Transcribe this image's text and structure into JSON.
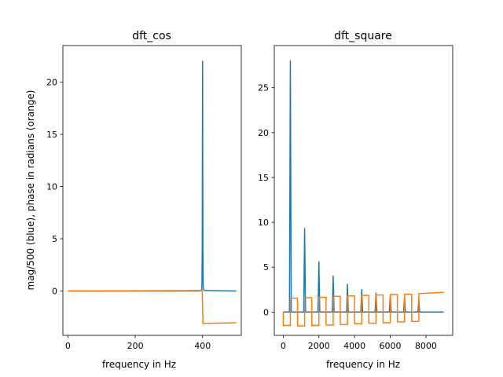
{
  "chart_data": [
    {
      "type": "line",
      "title": "dft_cos",
      "xlabel": "frequency in Hz",
      "ylabel": "mag/500 (blue), phase in radians (orange)",
      "xlim": [
        -15,
        515
      ],
      "ylim": [
        -4.25,
        23.5
      ],
      "xticks": [
        0,
        200,
        400
      ],
      "yticks": [
        0,
        5,
        10,
        15,
        20
      ],
      "grid": false,
      "series": [
        {
          "color": "#1f77b4",
          "points": [
            [
              0,
              0
            ],
            [
              390,
              0
            ],
            [
              396,
              0.05
            ],
            [
              398,
              0.3
            ],
            [
              399,
              4
            ],
            [
              400,
              22
            ],
            [
              401,
              4
            ],
            [
              402,
              0.3
            ],
            [
              404,
              0.05
            ],
            [
              500,
              0
            ]
          ]
        },
        {
          "color": "#ff7f0e",
          "points": [
            [
              0,
              0
            ],
            [
              398,
              0.05
            ],
            [
              399,
              0.1
            ],
            [
              401,
              -3.1
            ],
            [
              500,
              -3.05
            ]
          ]
        }
      ]
    },
    {
      "type": "line",
      "title": "dft_square",
      "xlabel": "frequency in Hz",
      "ylabel": "",
      "xlim": [
        -500,
        9500
      ],
      "ylim": [
        -2.6,
        29.7
      ],
      "xticks": [
        0,
        2000,
        4000,
        6000,
        8000
      ],
      "yticks": [
        0,
        5,
        10,
        15,
        20,
        25
      ],
      "grid": false,
      "series": [
        {
          "color": "#1f77b4",
          "points": [
            [
              0,
              0
            ],
            [
              350,
              0
            ],
            [
              400,
              28
            ],
            [
              450,
              0
            ],
            [
              1150,
              0
            ],
            [
              1200,
              9.3
            ],
            [
              1250,
              0
            ],
            [
              1950,
              0
            ],
            [
              2000,
              5.6
            ],
            [
              2050,
              0
            ],
            [
              2750,
              0
            ],
            [
              2800,
              4.0
            ],
            [
              2850,
              0
            ],
            [
              3550,
              0
            ],
            [
              3600,
              3.1
            ],
            [
              3650,
              0
            ],
            [
              4350,
              0
            ],
            [
              4400,
              2.5
            ],
            [
              4450,
              0
            ],
            [
              5150,
              0
            ],
            [
              5200,
              2.1
            ],
            [
              5250,
              0
            ],
            [
              5950,
              0
            ],
            [
              6000,
              1.9
            ],
            [
              6050,
              0
            ],
            [
              6750,
              0
            ],
            [
              6800,
              1.7
            ],
            [
              6850,
              0
            ],
            [
              7550,
              0
            ],
            [
              7600,
              1.5
            ],
            [
              7650,
              0
            ],
            [
              9000,
              0
            ]
          ]
        },
        {
          "color": "#ff7f0e",
          "points": [
            [
              0,
              0
            ],
            [
              0,
              -1.5
            ],
            [
              400,
              -1.5
            ],
            [
              400,
              1.55
            ],
            [
              800,
              1.55
            ],
            [
              800,
              -1.55
            ],
            [
              1200,
              -1.55
            ],
            [
              1200,
              1.6
            ],
            [
              1600,
              1.6
            ],
            [
              1600,
              -1.5
            ],
            [
              2000,
              -1.5
            ],
            [
              2000,
              1.65
            ],
            [
              2400,
              1.65
            ],
            [
              2400,
              -1.45
            ],
            [
              2800,
              -1.45
            ],
            [
              2800,
              1.75
            ],
            [
              3200,
              1.75
            ],
            [
              3200,
              -1.4
            ],
            [
              3600,
              -1.4
            ],
            [
              3600,
              1.8
            ],
            [
              4000,
              1.8
            ],
            [
              4000,
              -1.3
            ],
            [
              4400,
              -1.3
            ],
            [
              4400,
              1.85
            ],
            [
              4800,
              1.85
            ],
            [
              4800,
              -1.25
            ],
            [
              5200,
              -1.25
            ],
            [
              5200,
              1.9
            ],
            [
              5600,
              1.9
            ],
            [
              5600,
              -1.2
            ],
            [
              6000,
              -1.2
            ],
            [
              6000,
              1.95
            ],
            [
              6400,
              1.95
            ],
            [
              6400,
              -1.1
            ],
            [
              6800,
              -1.1
            ],
            [
              6800,
              2.0
            ],
            [
              7200,
              2.0
            ],
            [
              7200,
              -1.05
            ],
            [
              7600,
              -1.05
            ],
            [
              7600,
              2.05
            ],
            [
              9000,
              2.2
            ]
          ]
        }
      ]
    }
  ]
}
